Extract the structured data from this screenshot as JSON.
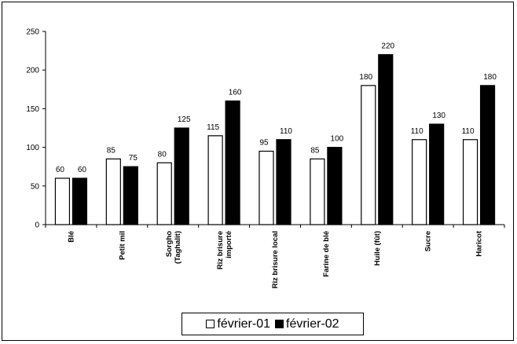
{
  "chart_data": {
    "type": "bar",
    "categories": [
      "Blé",
      "Petit mil",
      "Sorgho (Taghalit)",
      "Riz brisure importé",
      "Riz brisure local",
      "Farine de blé",
      "Huile (fût)",
      "Sucre",
      "Haricot"
    ],
    "category_lines": [
      [
        "Blé"
      ],
      [
        "Petit mil"
      ],
      [
        "Sorgho",
        "(Taghalit)"
      ],
      [
        "Riz brisure",
        "importé"
      ],
      [
        "Riz brisure local"
      ],
      [
        "Farine de blé"
      ],
      [
        "Huile (fût)"
      ],
      [
        "Sucre"
      ],
      [
        "Haricot"
      ]
    ],
    "series": [
      {
        "name": "février-01",
        "values": [
          60,
          85,
          80,
          115,
          95,
          85,
          180,
          110,
          110
        ],
        "color": "#ffffff"
      },
      {
        "name": "février-02",
        "values": [
          60,
          75,
          125,
          160,
          110,
          100,
          220,
          130,
          180
        ],
        "color": "#000000"
      }
    ],
    "y_ticks": [
      "0",
      "50",
      "100",
      "150",
      "200",
      "250"
    ],
    "ylim": [
      0,
      250
    ],
    "grid": false,
    "legend_position": "bottom",
    "title": "",
    "xlabel": "",
    "ylabel": ""
  }
}
